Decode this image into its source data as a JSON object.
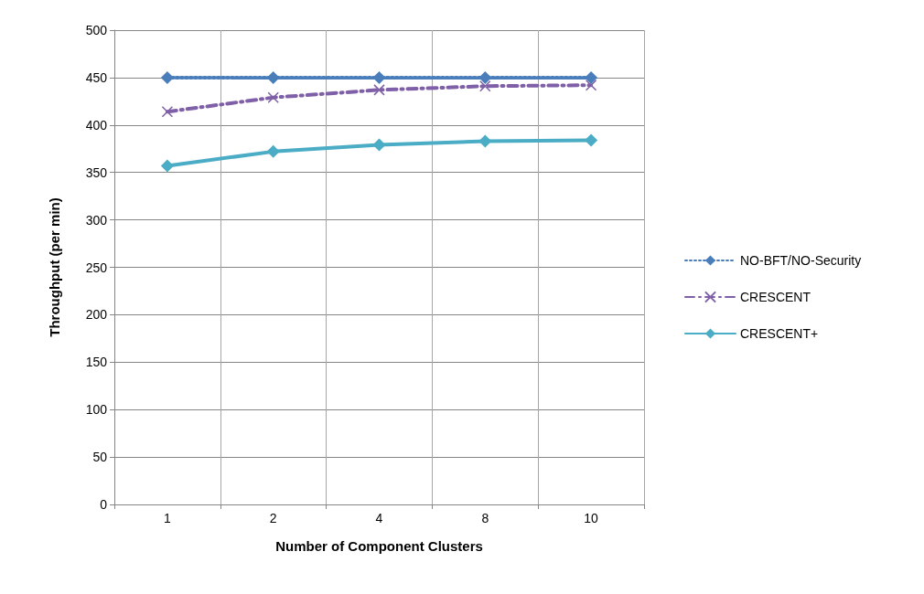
{
  "chart_data": {
    "type": "line",
    "xlabel": "Number of Component Clusters",
    "ylabel": "Throughput (per min)",
    "categories": [
      "1",
      "2",
      "4",
      "8",
      "10"
    ],
    "series": [
      {
        "name": "NO-BFT/NO-Security",
        "color": "#4a7ebb",
        "values": [
          450,
          450,
          450,
          450,
          450
        ],
        "marker": "diamond",
        "line_style": "dotted"
      },
      {
        "name": "CRESCENT",
        "color": "#7f60a8",
        "values": [
          414,
          429,
          437,
          441,
          442
        ],
        "marker": "cross",
        "line_style": "dashed"
      },
      {
        "name": "CRESCENT+",
        "color": "#4bacc6",
        "values": [
          357,
          372,
          379,
          383,
          384
        ],
        "marker": "diamond",
        "line_style": "solid"
      }
    ],
    "ylim": [
      0,
      500
    ],
    "yticks": [
      0,
      50,
      100,
      150,
      200,
      250,
      300,
      350,
      400,
      450,
      500
    ],
    "grid": true,
    "legend": "right"
  }
}
